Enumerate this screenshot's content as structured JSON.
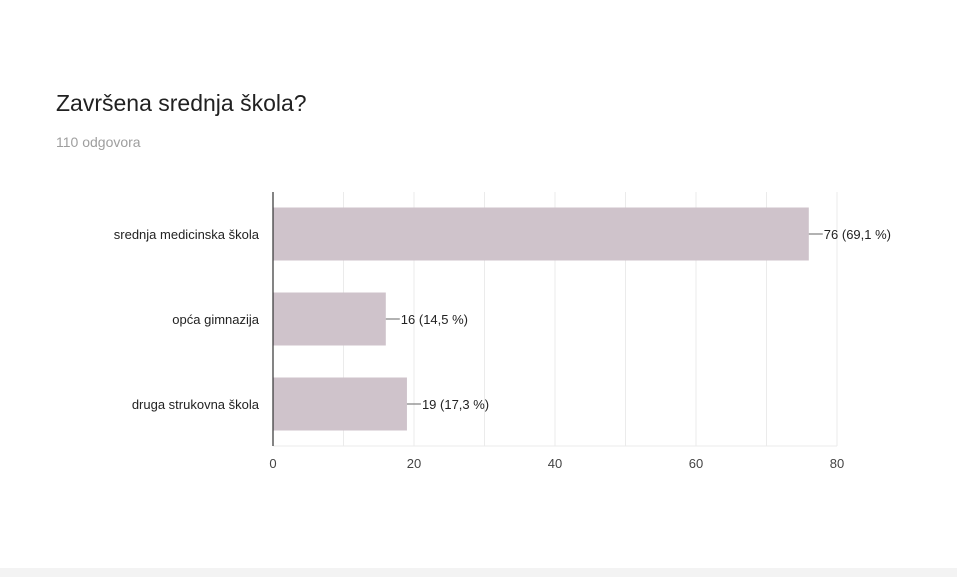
{
  "question": {
    "title": "Završena srednja škola?",
    "responses": "110 odgovora"
  },
  "chart_data": {
    "type": "bar",
    "orientation": "horizontal",
    "categories": [
      "srednja medicinska škola",
      "opća gimnazija",
      "druga strukovna škola"
    ],
    "values": [
      76,
      16,
      19
    ],
    "value_labels": [
      "76 (69,1 %)",
      "16 (14,5 %)",
      "19 (17,3 %)"
    ],
    "xlim": [
      0,
      80
    ],
    "x_ticks": [
      "0",
      "20",
      "40",
      "60",
      "80"
    ],
    "grid": true,
    "legend": "none",
    "colors": {
      "bar": "#cfc3cb",
      "grid": "#ebebeb",
      "axis": "#333333",
      "label": "#222222",
      "tick": "#444444"
    }
  }
}
